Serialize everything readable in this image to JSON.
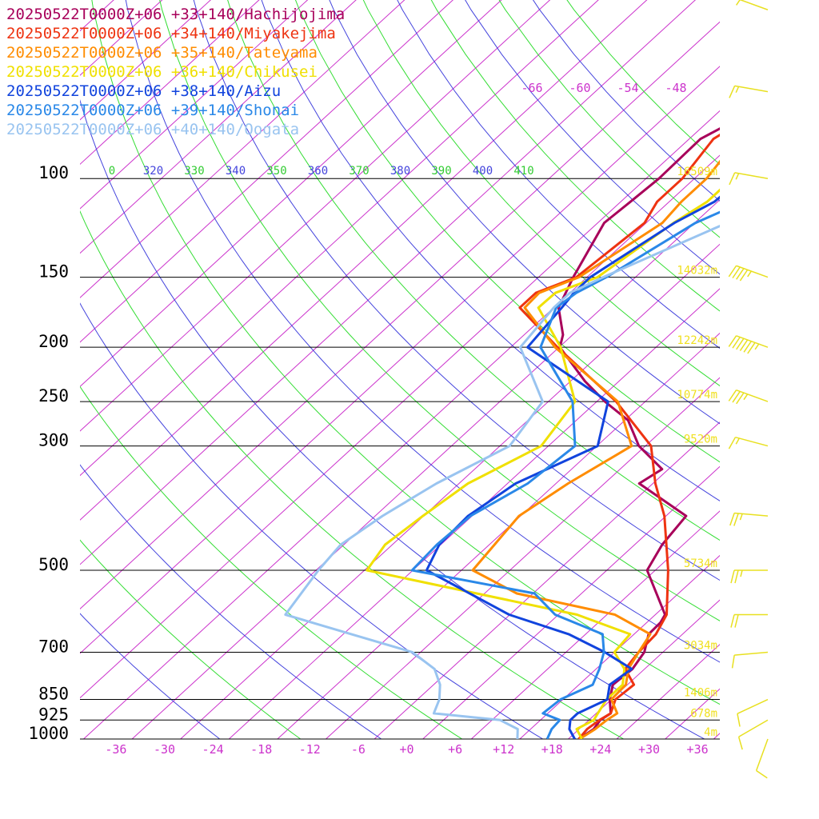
{
  "chart_data": {
    "type": "line",
    "subtype": "skew-T log-P diagram",
    "pressure_levels": [
      100,
      150,
      200,
      250,
      300,
      500,
      700,
      850,
      925,
      1000
    ],
    "x_ticks": [
      "-36",
      "-30",
      "-24",
      "-18",
      "-12",
      "-6",
      "+0",
      "+6",
      "+12",
      "+18",
      "+24",
      "+30",
      "+36"
    ],
    "x_tick_values": [
      -36,
      -30,
      -24,
      -18,
      -12,
      -6,
      0,
      6,
      12,
      18,
      24,
      30,
      36
    ],
    "theta_labels": [
      "0",
      "320",
      "330",
      "340",
      "350",
      "360",
      "370",
      "380",
      "390",
      "400",
      "410"
    ],
    "theta_label_colors": [
      "#33cc33",
      "#4444dd",
      "#33cc33",
      "#4444dd",
      "#33cc33",
      "#4444dd",
      "#33cc33",
      "#4444dd",
      "#33cc33",
      "#4444dd",
      "#33cc33"
    ],
    "mixing_labels": [
      "-66",
      "-60",
      "-54",
      "-48"
    ],
    "heights": [
      {
        "p": 100,
        "label": "16509m"
      },
      {
        "p": 150,
        "label": "14032m"
      },
      {
        "p": 200,
        "label": "12242m"
      },
      {
        "p": 250,
        "label": "10774m"
      },
      {
        "p": 300,
        "label": "9520m"
      },
      {
        "p": 500,
        "label": "5734m"
      },
      {
        "p": 700,
        "label": "3034m"
      },
      {
        "p": 850,
        "label": "1406m"
      },
      {
        "p": 925,
        "label": "678m"
      },
      {
        "p": 1000,
        "label": "4m"
      }
    ],
    "colors": {
      "isobar": "#000000",
      "isotherm": "#cc33cc",
      "dry_adiabat_blue": "#4444dd",
      "dry_adiabat_green": "#33dd33",
      "wind_barb": "#e8e020",
      "height_label": "#f0e020",
      "temp_tick_label": "#cc33cc"
    },
    "series": [
      {
        "name": "20250522T0000Z+06 +33+140/Hachijojima",
        "color": "#a8005a",
        "points": [
          [
            1000,
            21.3
          ],
          [
            960,
            21.8
          ],
          [
            925,
            21.4
          ],
          [
            900,
            21.8
          ],
          [
            850,
            19.8
          ],
          [
            800,
            18.2
          ],
          [
            750,
            18.5
          ],
          [
            700,
            17.7
          ],
          [
            650,
            15.8
          ],
          [
            620,
            15.7
          ],
          [
            600,
            15.2
          ],
          [
            500,
            7.0
          ],
          [
            450,
            5.4
          ],
          [
            400,
            4.5
          ],
          [
            350,
            -5.7
          ],
          [
            330,
            -4.8
          ],
          [
            300,
            -10.8
          ],
          [
            270,
            -15.6
          ],
          [
            250,
            -21.0
          ],
          [
            230,
            -26.2
          ],
          [
            200,
            -33.9
          ],
          [
            190,
            -35.2
          ],
          [
            170,
            -39.4
          ],
          [
            150,
            -41.7
          ],
          [
            120,
            -45.2
          ],
          [
            110,
            -44.8
          ],
          [
            100,
            -44.4
          ],
          [
            85,
            -44.6
          ],
          [
            70,
            -40.0
          ],
          [
            50,
            -36.0
          ]
        ]
      },
      {
        "name": "20250522T0000Z+06 +34+140/Miyakejima",
        "color": "#ee3311",
        "points": [
          [
            1000,
            21.3
          ],
          [
            960,
            21.0
          ],
          [
            925,
            21.3
          ],
          [
            900,
            21.8
          ],
          [
            850,
            20.5
          ],
          [
            800,
            20.8
          ],
          [
            750,
            17.6
          ],
          [
            700,
            17.0
          ],
          [
            650,
            16.7
          ],
          [
            600,
            15.4
          ],
          [
            500,
            9.6
          ],
          [
            400,
            1.8
          ],
          [
            350,
            -3.7
          ],
          [
            300,
            -9.3
          ],
          [
            250,
            -19.6
          ],
          [
            200,
            -34.2
          ],
          [
            170,
            -44.2
          ],
          [
            160,
            -44.2
          ],
          [
            150,
            -41.3
          ],
          [
            120,
            -40.2
          ],
          [
            110,
            -41.5
          ],
          [
            100,
            -41.5
          ],
          [
            85,
            -43.0
          ],
          [
            70,
            -40.0
          ],
          [
            50,
            -35.5
          ]
        ]
      },
      {
        "name": "20250522T0000Z+06 +35+140/Tateyama",
        "color": "#ff8c00",
        "points": [
          [
            1000,
            21.4
          ],
          [
            960,
            22.0
          ],
          [
            925,
            22.2
          ],
          [
            900,
            22.6
          ],
          [
            850,
            20.0
          ],
          [
            800,
            19.8
          ],
          [
            750,
            18.0
          ],
          [
            700,
            17.0
          ],
          [
            650,
            16.0
          ],
          [
            600,
            9.0
          ],
          [
            550,
            -6.0
          ],
          [
            500,
            -14.6
          ],
          [
            400,
            -16.2
          ],
          [
            350,
            -14.5
          ],
          [
            300,
            -11.7
          ],
          [
            250,
            -19.4
          ],
          [
            200,
            -34.5
          ],
          [
            170,
            -43.6
          ],
          [
            160,
            -43.8
          ],
          [
            150,
            -41.0
          ],
          [
            120,
            -38.0
          ],
          [
            110,
            -38.5
          ],
          [
            100,
            -38.5
          ],
          [
            85,
            -40.0
          ],
          [
            70,
            -38.5
          ],
          [
            50,
            -36.0
          ]
        ]
      },
      {
        "name": "20250522T0000Z+06 +36+140/Chikusei",
        "color": "#f0e000",
        "points": [
          [
            1000,
            21.7
          ],
          [
            960,
            19.7
          ],
          [
            925,
            20.6
          ],
          [
            900,
            20.2
          ],
          [
            850,
            19.4
          ],
          [
            800,
            19.4
          ],
          [
            750,
            17.5
          ],
          [
            700,
            14.0
          ],
          [
            650,
            13.5
          ],
          [
            600,
            4.3
          ],
          [
            500,
            -27.7
          ],
          [
            450,
            -28.9
          ],
          [
            400,
            -28.1
          ],
          [
            350,
            -26.9
          ],
          [
            300,
            -22.9
          ],
          [
            250,
            -24.7
          ],
          [
            200,
            -33.8
          ],
          [
            170,
            -41.9
          ],
          [
            160,
            -41.8
          ],
          [
            150,
            -38.7
          ],
          [
            120,
            -36.6
          ],
          [
            110,
            -35.3
          ],
          [
            100,
            -35.3
          ],
          [
            85,
            -38.1
          ],
          [
            70,
            -37.0
          ],
          [
            50,
            -36.0
          ]
        ]
      },
      {
        "name": "20250522T0000Z+06 +38+140/Aizu",
        "color": "#1144dd",
        "points": [
          [
            1000,
            20.8
          ],
          [
            960,
            18.8
          ],
          [
            925,
            17.7
          ],
          [
            900,
            17.7
          ],
          [
            850,
            19.5
          ],
          [
            800,
            17.8
          ],
          [
            750,
            18.4
          ],
          [
            700,
            12.8
          ],
          [
            650,
            5.9
          ],
          [
            600,
            -4.1
          ],
          [
            500,
            -20.3
          ],
          [
            450,
            -22.2
          ],
          [
            400,
            -22.5
          ],
          [
            350,
            -21.0
          ],
          [
            300,
            -15.9
          ],
          [
            250,
            -20.6
          ],
          [
            200,
            -37.9
          ],
          [
            170,
            -39.0
          ],
          [
            160,
            -39.5
          ],
          [
            150,
            -39.6
          ],
          [
            120,
            -36.5
          ],
          [
            110,
            -34.4
          ],
          [
            100,
            -34.1
          ],
          [
            85,
            -34.3
          ],
          [
            70,
            -34.5
          ],
          [
            50,
            -35.0
          ]
        ]
      },
      {
        "name": "20250522T0000Z+06 +39+140/Shonai",
        "color": "#2a88e8",
        "points": [
          [
            1000,
            17.4
          ],
          [
            960,
            16.6
          ],
          [
            925,
            16.4
          ],
          [
            900,
            13.4
          ],
          [
            850,
            13.7
          ],
          [
            800,
            15.7
          ],
          [
            750,
            14.4
          ],
          [
            700,
            12.7
          ],
          [
            650,
            10.1
          ],
          [
            600,
            1.6
          ],
          [
            550,
            -3.8
          ],
          [
            500,
            -22.1
          ],
          [
            450,
            -22.5
          ],
          [
            400,
            -22.2
          ],
          [
            350,
            -19.5
          ],
          [
            300,
            -18.7
          ],
          [
            250,
            -25.0
          ],
          [
            200,
            -36.3
          ],
          [
            170,
            -39.7
          ],
          [
            160,
            -39.2
          ],
          [
            150,
            -37.6
          ],
          [
            120,
            -33.9
          ],
          [
            110,
            -30.8
          ],
          [
            100,
            -30.3
          ],
          [
            85,
            -31.6
          ],
          [
            70,
            -32.5
          ],
          [
            50,
            -34.0
          ]
        ]
      },
      {
        "name": "20250522T0000Z+06 +40+140/Oogata",
        "color": "#99c4f0",
        "points": [
          [
            1000,
            13.7
          ],
          [
            960,
            12.4
          ],
          [
            925,
            9.0
          ],
          [
            900,
            -0.1
          ],
          [
            850,
            -1.3
          ],
          [
            800,
            -3.2
          ],
          [
            750,
            -6.0
          ],
          [
            700,
            -11.0
          ],
          [
            650,
            -21.0
          ],
          [
            600,
            -31.8
          ],
          [
            500,
            -33.7
          ],
          [
            450,
            -34.4
          ],
          [
            400,
            -33.1
          ],
          [
            350,
            -30.8
          ],
          [
            300,
            -26.8
          ],
          [
            250,
            -28.7
          ],
          [
            200,
            -38.8
          ],
          [
            170,
            -40.0
          ],
          [
            160,
            -40.0
          ],
          [
            150,
            -38.0
          ],
          [
            120,
            -30.0
          ],
          [
            110,
            -29.5
          ],
          [
            100,
            -29.5
          ],
          [
            85,
            -31.6
          ],
          [
            70,
            -33.0
          ],
          [
            50,
            -34.5
          ]
        ]
      }
    ],
    "wind_barbs": [
      {
        "p": 1000,
        "dir": 200,
        "speed": 10
      },
      {
        "p": 925,
        "dir": 240,
        "speed": 10
      },
      {
        "p": 850,
        "dir": 245,
        "speed": 10
      },
      {
        "p": 700,
        "dir": 265,
        "speed": 10
      },
      {
        "p": 600,
        "dir": 270,
        "speed": 20
      },
      {
        "p": 500,
        "dir": 270,
        "speed": 25
      },
      {
        "p": 400,
        "dir": 275,
        "speed": 25
      },
      {
        "p": 300,
        "dir": 285,
        "speed": 15
      },
      {
        "p": 250,
        "dir": 290,
        "speed": 35
      },
      {
        "p": 200,
        "dir": 290,
        "speed": 65
      },
      {
        "p": 150,
        "dir": 290,
        "speed": 45
      },
      {
        "p": 100,
        "dir": 280,
        "speed": 15
      },
      {
        "p": 70,
        "dir": 280,
        "speed": 15
      },
      {
        "p": 50,
        "dir": 290,
        "speed": 5
      }
    ]
  }
}
